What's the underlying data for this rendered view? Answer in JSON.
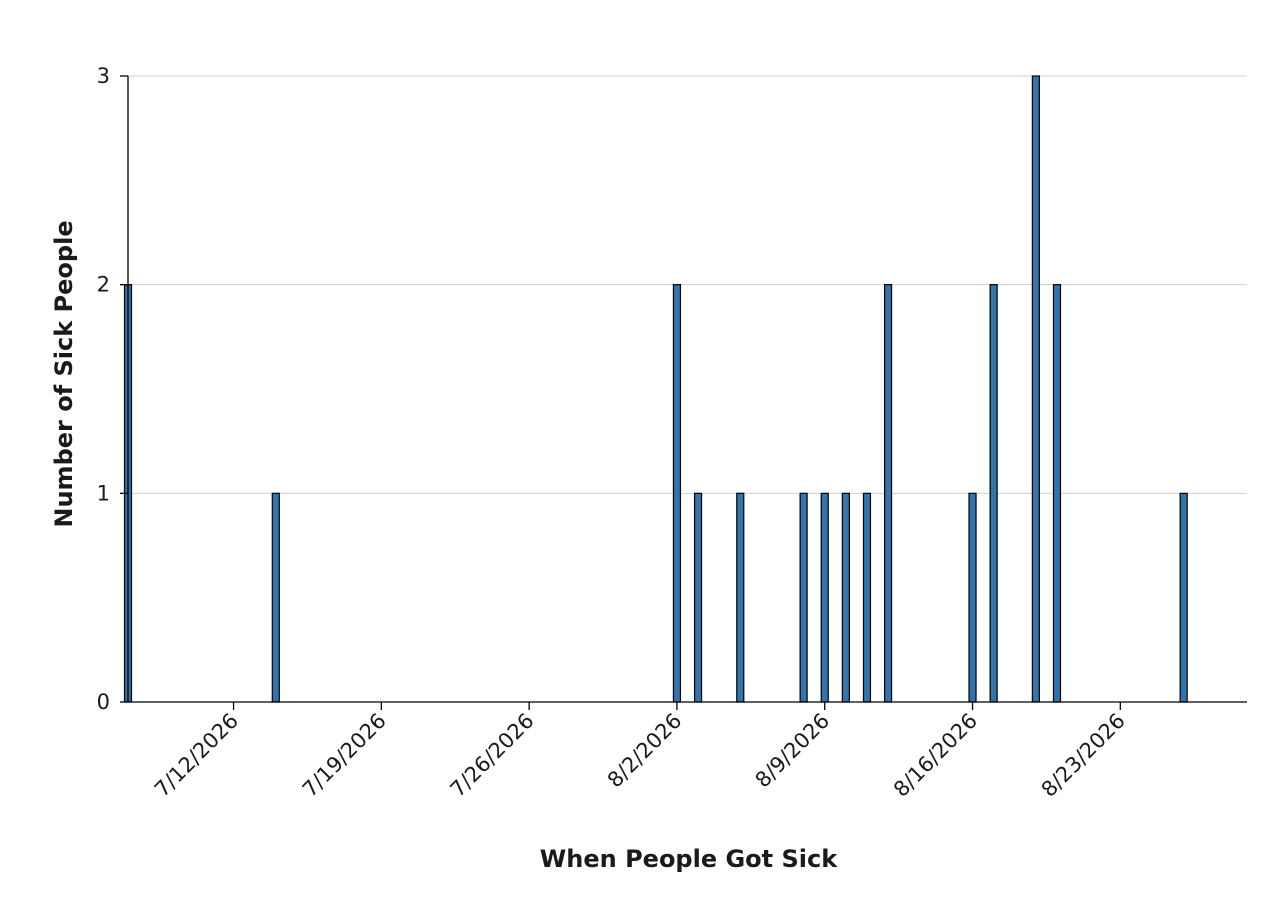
{
  "chart_data": {
    "type": "bar",
    "title": "",
    "xlabel": "When People Got Sick",
    "ylabel": "Number of Sick People",
    "x_type": "date",
    "x_range": [
      "7/7/2026",
      "8/29/2026"
    ],
    "ylim": [
      0,
      3
    ],
    "y_ticks": [
      "0",
      "1",
      "2",
      "3"
    ],
    "x_ticks": [
      "7/12/2026",
      "7/19/2026",
      "7/26/2026",
      "8/2/2026",
      "8/9/2026",
      "8/16/2026",
      "8/23/2026"
    ],
    "grid": "horizontal",
    "legend": "none",
    "bar_color": "#3374ac",
    "x": [
      "7/7/2026",
      "7/14/2026",
      "8/2/2026",
      "8/3/2026",
      "8/5/2026",
      "8/8/2026",
      "8/9/2026",
      "8/10/2026",
      "8/11/2026",
      "8/12/2026",
      "8/16/2026",
      "8/17/2026",
      "8/19/2026",
      "8/20/2026",
      "8/26/2026"
    ],
    "values": [
      2,
      1,
      2,
      1,
      1,
      1,
      1,
      1,
      1,
      2,
      1,
      2,
      3,
      2,
      1
    ]
  }
}
